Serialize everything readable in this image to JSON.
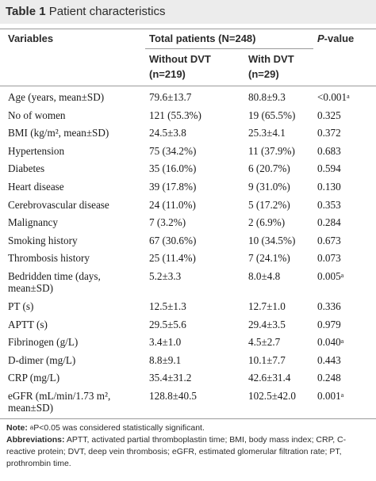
{
  "title": {
    "label": "Table 1",
    "text": "Patient characteristics"
  },
  "header": {
    "variables": "Variables",
    "total": "Total patients (N=248)",
    "pvalue_italic": "P",
    "pvalue_rest": "-value",
    "without_dvt": "Without DVT",
    "without_n": "(n=219)",
    "with_dvt": "With DVT",
    "with_n": "(n=29)"
  },
  "rows": [
    {
      "variable": "Age (years, mean±SD)",
      "without": "79.6±13.7",
      "with": "80.8±9.3",
      "p": "<0.001",
      "sig": "a"
    },
    {
      "variable": "No of women",
      "without": "121 (55.3%)",
      "with": "19 (65.5%)",
      "p": "0.325",
      "sig": ""
    },
    {
      "variable": "BMI (kg/m², mean±SD)",
      "without": "24.5±3.8",
      "with": "25.3±4.1",
      "p": "0.372",
      "sig": ""
    },
    {
      "variable": "Hypertension",
      "without": "75 (34.2%)",
      "with": "11 (37.9%)",
      "p": "0.683",
      "sig": ""
    },
    {
      "variable": "Diabetes",
      "without": "35 (16.0%)",
      "with": "6 (20.7%)",
      "p": "0.594",
      "sig": ""
    },
    {
      "variable": "Heart disease",
      "without": "39 (17.8%)",
      "with": "9 (31.0%)",
      "p": "0.130",
      "sig": ""
    },
    {
      "variable": "Cerebrovascular disease",
      "without": "24 (11.0%)",
      "with": "5 (17.2%)",
      "p": "0.353",
      "sig": ""
    },
    {
      "variable": "Malignancy",
      "without": "7 (3.2%)",
      "with": "2 (6.9%)",
      "p": "0.284",
      "sig": ""
    },
    {
      "variable": "Smoking history",
      "without": "67 (30.6%)",
      "with": "10 (34.5%)",
      "p": "0.673",
      "sig": ""
    },
    {
      "variable": "Thrombosis history",
      "without": "25 (11.4%)",
      "with": "7 (24.1%)",
      "p": "0.073",
      "sig": ""
    },
    {
      "variable": "Bedridden time (days, mean±SD)",
      "without": "5.2±3.3",
      "with": "8.0±4.8",
      "p": "0.005",
      "sig": "a"
    },
    {
      "variable": "PT (s)",
      "without": "12.5±1.3",
      "with": "12.7±1.0",
      "p": "0.336",
      "sig": ""
    },
    {
      "variable": "APTT (s)",
      "without": "29.5±5.6",
      "with": "29.4±3.5",
      "p": "0.979",
      "sig": ""
    },
    {
      "variable": "Fibrinogen (g/L)",
      "without": "3.4±1.0",
      "with": "4.5±2.7",
      "p": "0.040",
      "sig": "a"
    },
    {
      "variable": "D-dimer (mg/L)",
      "without": "8.8±9.1",
      "with": "10.1±7.7",
      "p": "0.443",
      "sig": ""
    },
    {
      "variable": "CRP (mg/L)",
      "without": "35.4±31.2",
      "with": "42.6±31.4",
      "p": "0.248",
      "sig": ""
    },
    {
      "variable": "eGFR (mL/min/1.73 m², mean±SD)",
      "without": "128.8±40.5",
      "with": "102.5±42.0",
      "p": "0.001",
      "sig": "a"
    }
  ],
  "notes": {
    "note_label": "Note:",
    "note_sup": "a",
    "note_text": "P<0.05 was considered statistically significant.",
    "abbr_label": "Abbreviations:",
    "abbr_text": "APTT, activated partial thromboplastin time; BMI, body mass index; CRP, C-reactive protein; DVT, deep vein thrombosis; eGFR, estimated glomerular filtration rate; PT, prothrombin time."
  }
}
